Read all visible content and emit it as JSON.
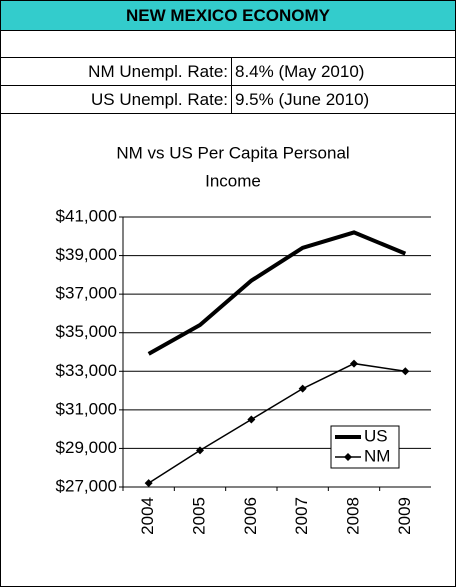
{
  "header": {
    "title": "NEW MEXICO ECONOMY"
  },
  "table": {
    "rows": [
      [
        "NM Unempl. Rate:",
        "8.4% (May 2010)"
      ],
      [
        "US Unempl. Rate:",
        "9.5% (June 2010)"
      ]
    ]
  },
  "chart_data": {
    "type": "line",
    "title": "NM vs US Per Capita Personal Income",
    "categories": [
      "2004",
      "2005",
      "2006",
      "2007",
      "2008",
      "2009"
    ],
    "series": [
      {
        "name": "US",
        "color": "#000000",
        "width": 4,
        "values": [
          33900,
          35400,
          37700,
          39400,
          40200,
          39100
        ]
      },
      {
        "name": "NM",
        "color": "#000000",
        "width": 1.5,
        "marker": "diamond",
        "values": [
          27200,
          28900,
          30500,
          32100,
          33400,
          33000
        ]
      }
    ],
    "ylim": [
      27000,
      41000
    ],
    "yticks": [
      {
        "value": 27000,
        "label": "$27,000"
      },
      {
        "value": 29000,
        "label": "$29,000"
      },
      {
        "value": 31000,
        "label": "$31,000"
      },
      {
        "value": 33000,
        "label": "$33,000"
      },
      {
        "value": 35000,
        "label": "$35,000"
      },
      {
        "value": 37000,
        "label": "$37,000"
      },
      {
        "value": 39000,
        "label": "$39,000"
      },
      {
        "value": 41000,
        "label": "$41,000"
      }
    ],
    "grid": true,
    "legend": "lower right"
  }
}
